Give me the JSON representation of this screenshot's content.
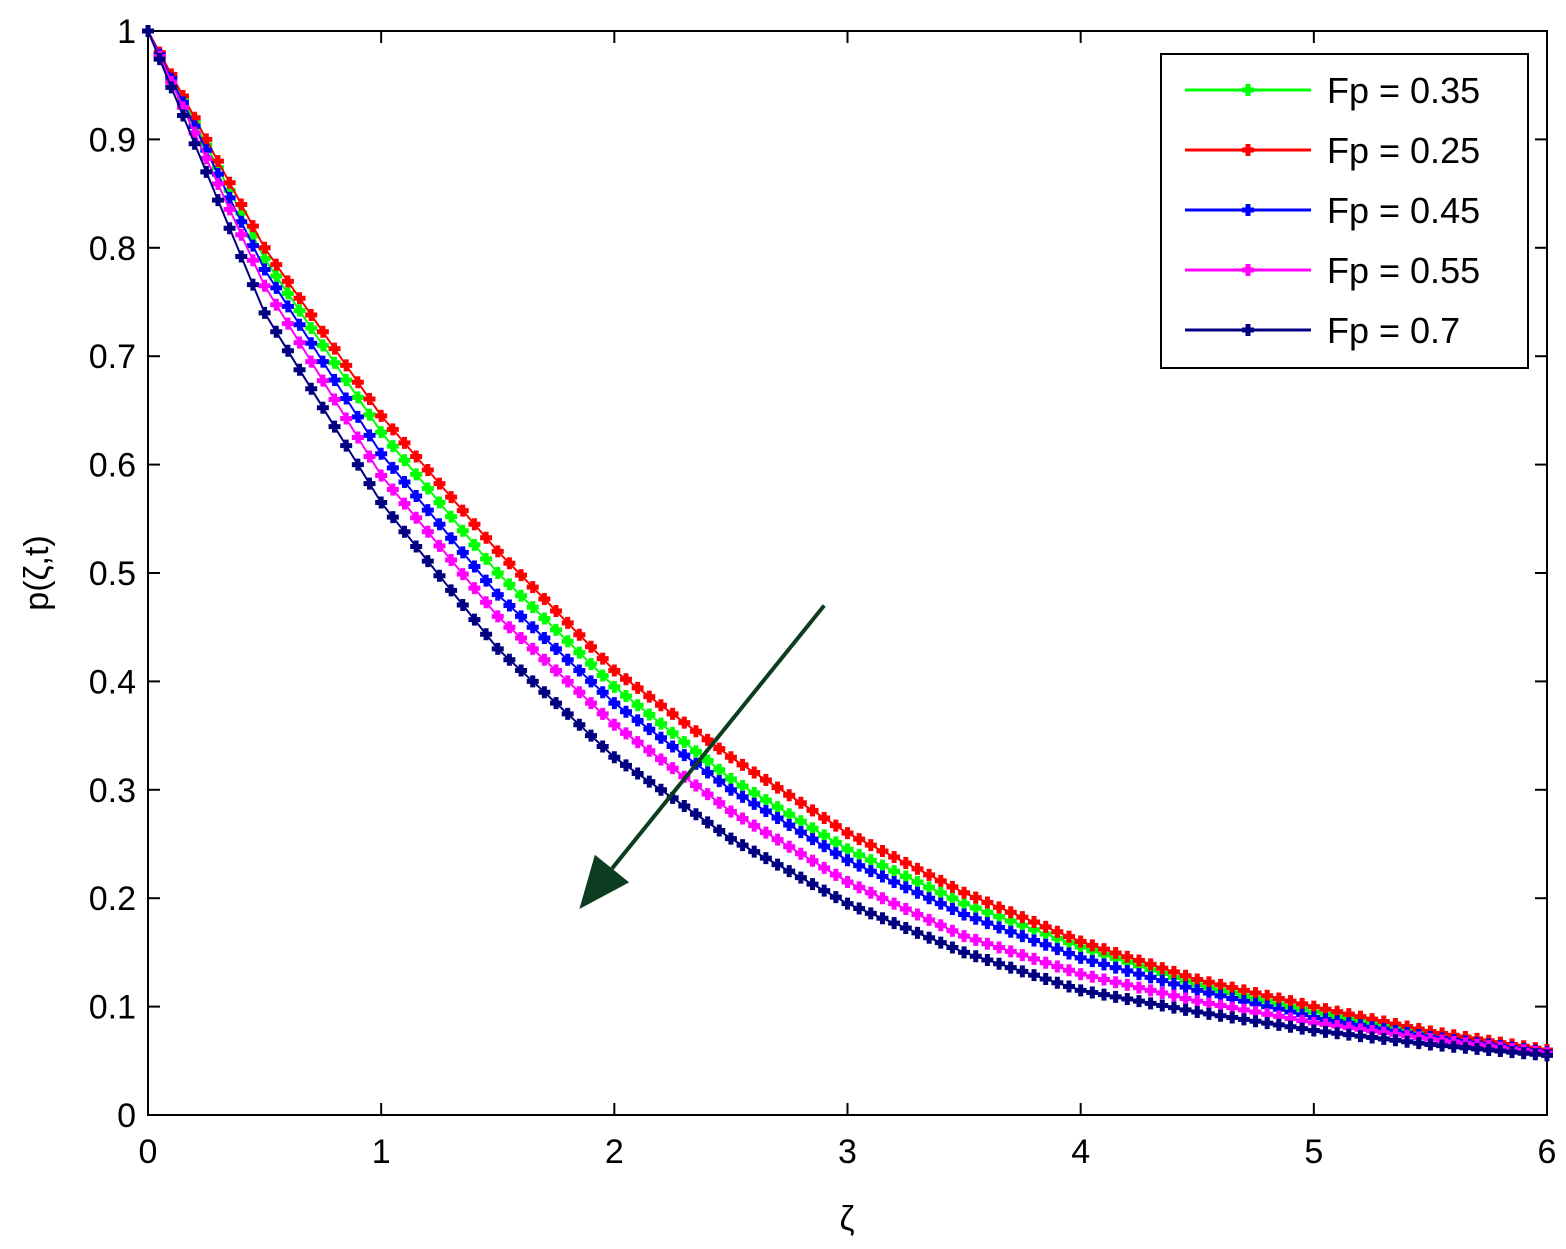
{
  "chart_data": {
    "type": "line",
    "title": "",
    "xlabel": "ζ",
    "ylabel": "p(ζ,t)",
    "xlim": [
      0,
      6
    ],
    "ylim": [
      0,
      1
    ],
    "xticks": [
      "0",
      "1",
      "2",
      "3",
      "4",
      "5",
      "6"
    ],
    "yticks": [
      "0",
      "0.1",
      "0.2",
      "0.3",
      "0.4",
      "0.5",
      "0.6",
      "0.7",
      "0.8",
      "0.9",
      "1"
    ],
    "grid": false,
    "legend_position": "top-right",
    "x": [
      0,
      0.5,
      1,
      1.5,
      2,
      2.5,
      3,
      3.5,
      4,
      4.5,
      5,
      5.5,
      6
    ],
    "series": [
      {
        "name": "Fp = 0.35",
        "color": "#00ff00",
        "values": [
          1.0,
          0.79,
          0.63,
          0.5,
          0.395,
          0.31,
          0.245,
          0.195,
          0.155,
          0.12,
          0.095,
          0.075,
          0.06
        ]
      },
      {
        "name": "Fp = 0.25",
        "color": "#ff0000",
        "values": [
          1.0,
          0.8,
          0.645,
          0.52,
          0.41,
          0.33,
          0.26,
          0.205,
          0.16,
          0.125,
          0.1,
          0.077,
          0.06
        ]
      },
      {
        "name": "Fp = 0.45",
        "color": "#0000ff",
        "values": [
          1.0,
          0.78,
          0.61,
          0.48,
          0.38,
          0.3,
          0.235,
          0.185,
          0.145,
          0.115,
          0.09,
          0.072,
          0.058
        ]
      },
      {
        "name": "Fp = 0.55",
        "color": "#ff00ff",
        "values": [
          1.0,
          0.765,
          0.59,
          0.46,
          0.36,
          0.28,
          0.215,
          0.165,
          0.13,
          0.105,
          0.085,
          0.07,
          0.057
        ]
      },
      {
        "name": "Fp  = 0.7",
        "color": "#000080",
        "values": [
          1.0,
          0.74,
          0.565,
          0.43,
          0.33,
          0.255,
          0.195,
          0.15,
          0.115,
          0.095,
          0.078,
          0.065,
          0.055
        ]
      }
    ],
    "annotations": [
      {
        "type": "arrow",
        "from": [
          2.9,
          0.47
        ],
        "to": [
          1.85,
          0.19
        ],
        "color": "#0d3d20"
      }
    ]
  }
}
